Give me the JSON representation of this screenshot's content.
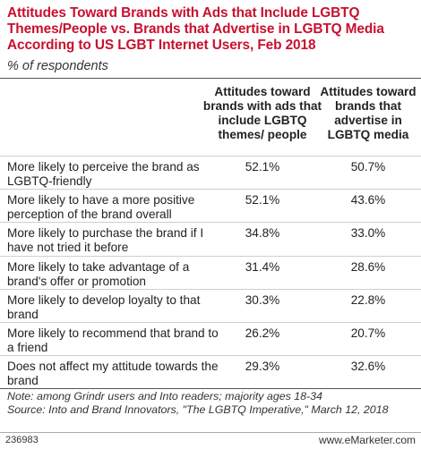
{
  "chart_data": {
    "type": "table",
    "title": "Attitudes Toward Brands with Ads that Include LGBTQ Themes/People vs. Brands that Advertise in LGBTQ Media According to US LGBT Internet Users, Feb 2018",
    "subtitle": "% of respondents",
    "columns": [
      "Attitudes toward brands with ads that include LGBTQ themes/ people",
      "Attitudes toward brands that advertise in LGBTQ media"
    ],
    "rows": [
      {
        "label": "More likely to perceive the brand as LGBTQ-friendly",
        "v1": "52.1%",
        "v2": "50.7%"
      },
      {
        "label": "More likely to have a more positive perception of the brand overall",
        "v1": "52.1%",
        "v2": "43.6%"
      },
      {
        "label": "More likely to purchase the brand if I have not tried it before",
        "v1": "34.8%",
        "v2": "33.0%"
      },
      {
        "label": "More likely to take advantage of a brand's offer or promotion",
        "v1": "31.4%",
        "v2": "28.6%"
      },
      {
        "label": "More likely to develop loyalty to that brand",
        "v1": "30.3%",
        "v2": "22.8%"
      },
      {
        "label": "More likely to recommend that brand to a friend",
        "v1": "26.2%",
        "v2": "20.7%"
      },
      {
        "label": "Does not affect my attitude towards the brand",
        "v1": "29.3%",
        "v2": "32.6%"
      }
    ],
    "note": "Note: among Grindr users and Into readers; majority ages 18-34",
    "source": "Source: Into and Brand Innovators, \"The LGBTQ Imperative,\" March 12, 2018",
    "chart_id": "236983",
    "brand": "www.eMarketer.com"
  }
}
